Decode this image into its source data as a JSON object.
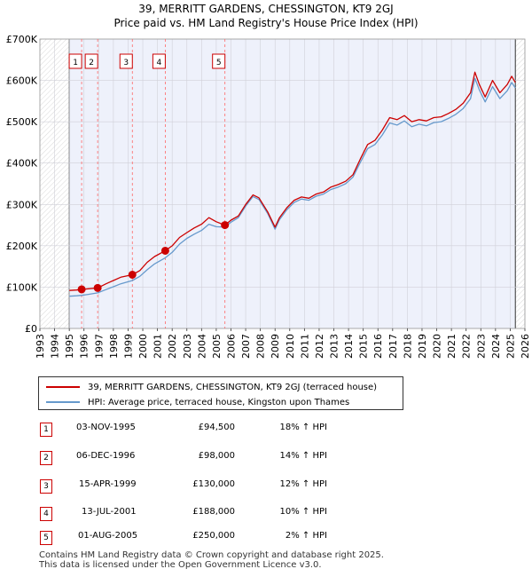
{
  "chart_data": {
    "type": "line",
    "title": "39, MERRITT GARDENS, CHESSINGTON, KT9 2GJ",
    "subtitle": "Price paid vs. HM Land Registry's House Price Index (HPI)",
    "xlim": [
      1993,
      2026
    ],
    "ylim": [
      0,
      700000
    ],
    "y_ticks": [
      {
        "value": 0,
        "label": "£0"
      },
      {
        "value": 100000,
        "label": "£100K"
      },
      {
        "value": 200000,
        "label": "£200K"
      },
      {
        "value": 300000,
        "label": "£300K"
      },
      {
        "value": 400000,
        "label": "£400K"
      },
      {
        "value": 500000,
        "label": "£500K"
      },
      {
        "value": 600000,
        "label": "£600K"
      },
      {
        "value": 700000,
        "label": "£700K"
      }
    ],
    "x_ticks": [
      "1993",
      "1994",
      "1995",
      "1996",
      "1997",
      "1998",
      "1999",
      "2000",
      "2001",
      "2002",
      "2003",
      "2004",
      "2005",
      "2006",
      "2007",
      "2008",
      "2009",
      "2010",
      "2011",
      "2012",
      "2013",
      "2014",
      "2015",
      "2016",
      "2017",
      "2018",
      "2019",
      "2020",
      "2021",
      "2022",
      "2023",
      "2024",
      "2025",
      "2026"
    ],
    "data_range": [
      1995.0,
      2025.35
    ],
    "series": [
      {
        "name": "39, MERRITT GARDENS, CHESSINGTON, KT9 2GJ (terraced house)",
        "color": "#cc0000",
        "x": [
          1995.0,
          1995.5,
          1995.84,
          1996.3,
          1996.93,
          1997.5,
          1998.0,
          1998.5,
          1999.29,
          1999.8,
          2000.3,
          2000.8,
          2001.53,
          2002.0,
          2002.5,
          2003.0,
          2003.5,
          2004.0,
          2004.5,
          2005.0,
          2005.59,
          2006.0,
          2006.5,
          2007.0,
          2007.5,
          2007.9,
          2008.5,
          2009.0,
          2009.3,
          2009.8,
          2010.3,
          2010.8,
          2011.3,
          2011.8,
          2012.3,
          2012.8,
          2013.3,
          2013.8,
          2014.3,
          2014.8,
          2015.3,
          2015.8,
          2016.3,
          2016.8,
          2017.3,
          2017.8,
          2018.3,
          2018.8,
          2019.3,
          2019.8,
          2020.3,
          2020.8,
          2021.3,
          2021.8,
          2022.3,
          2022.6,
          2022.9,
          2023.3,
          2023.8,
          2024.3,
          2024.8,
          2025.1,
          2025.35
        ],
        "y": [
          92000,
          93000,
          94500,
          96000,
          98000,
          108000,
          116000,
          124000,
          130000,
          140000,
          160000,
          174000,
          188000,
          200000,
          220000,
          232000,
          243000,
          252000,
          268000,
          258000,
          250000,
          262000,
          272000,
          300000,
          323000,
          316000,
          282000,
          245000,
          268000,
          292000,
          310000,
          318000,
          315000,
          325000,
          330000,
          342000,
          348000,
          356000,
          372000,
          410000,
          445000,
          455000,
          480000,
          510000,
          505000,
          515000,
          500000,
          505000,
          502000,
          510000,
          512000,
          520000,
          530000,
          545000,
          570000,
          620000,
          590000,
          560000,
          600000,
          570000,
          590000,
          610000,
          595000
        ]
      },
      {
        "name": "HPI: Average price, terraced house, Kingston upon Thames",
        "color": "#6699cc",
        "x": [
          1995.0,
          1995.5,
          1995.84,
          1996.3,
          1996.93,
          1997.5,
          1998.0,
          1998.5,
          1999.29,
          1999.8,
          2000.3,
          2000.8,
          2001.53,
          2002.0,
          2002.5,
          2003.0,
          2003.5,
          2004.0,
          2004.5,
          2005.0,
          2005.59,
          2006.0,
          2006.5,
          2007.0,
          2007.5,
          2007.9,
          2008.5,
          2009.0,
          2009.3,
          2009.8,
          2010.3,
          2010.8,
          2011.3,
          2011.8,
          2012.3,
          2012.8,
          2013.3,
          2013.8,
          2014.3,
          2014.8,
          2015.3,
          2015.8,
          2016.3,
          2016.8,
          2017.3,
          2017.8,
          2018.3,
          2018.8,
          2019.3,
          2019.8,
          2020.3,
          2020.8,
          2021.3,
          2021.8,
          2022.3,
          2022.6,
          2022.9,
          2023.3,
          2023.8,
          2024.3,
          2024.8,
          2025.1,
          2025.35
        ],
        "y": [
          78000,
          79000,
          80000,
          82500,
          86000,
          94000,
          101000,
          108000,
          116000,
          126000,
          142000,
          156000,
          171000,
          184000,
          204000,
          218000,
          228000,
          237000,
          252000,
          246000,
          245000,
          257000,
          268000,
          296000,
          319000,
          312000,
          278000,
          240000,
          263000,
          287000,
          305000,
          313000,
          310000,
          320000,
          325000,
          336000,
          342000,
          350000,
          366000,
          402000,
          435000,
          445000,
          468000,
          497000,
          492000,
          502000,
          488000,
          494000,
          490000,
          498000,
          500000,
          508000,
          518000,
          532000,
          556000,
          605000,
          577000,
          548000,
          585000,
          556000,
          575000,
          595000,
          582000
        ]
      }
    ],
    "sale_markers": [
      {
        "id": "1",
        "x": 1995.84,
        "y": 94500
      },
      {
        "id": "2",
        "x": 1996.93,
        "y": 98000
      },
      {
        "id": "3",
        "x": 1999.29,
        "y": 130000
      },
      {
        "id": "4",
        "x": 2001.53,
        "y": 188000
      },
      {
        "id": "5",
        "x": 2005.59,
        "y": 250000
      }
    ]
  },
  "legend": {
    "property_label": "39, MERRITT GARDENS, CHESSINGTON, KT9 2GJ (terraced house)",
    "hpi_label": "HPI: Average price, terraced house, Kingston upon Thames",
    "property_color": "#cc0000",
    "hpi_color": "#6699cc"
  },
  "sales": [
    {
      "id": "1",
      "date": "03-NOV-1995",
      "price": "£94,500",
      "hpi": "18% ↑ HPI"
    },
    {
      "id": "2",
      "date": "06-DEC-1996",
      "price": "£98,000",
      "hpi": "14% ↑ HPI"
    },
    {
      "id": "3",
      "date": "15-APR-1999",
      "price": "£130,000",
      "hpi": "12% ↑ HPI"
    },
    {
      "id": "4",
      "date": "13-JUL-2001",
      "price": "£188,000",
      "hpi": "10% ↑ HPI"
    },
    {
      "id": "5",
      "date": "01-AUG-2005",
      "price": "£250,000",
      "hpi": "2% ↑ HPI"
    }
  ],
  "footer": {
    "line1": "Contains HM Land Registry data © Crown copyright and database right 2025.",
    "line2": "This data is licensed under the Open Government Licence v3.0."
  }
}
